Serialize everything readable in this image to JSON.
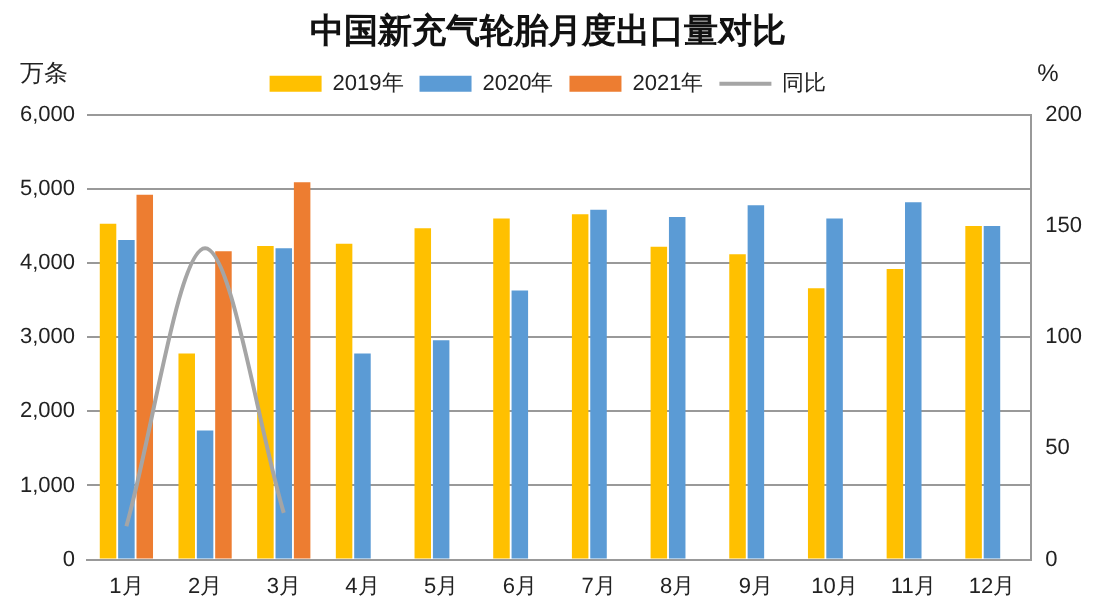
{
  "chart_data": {
    "type": "bar",
    "title": "中国新充气轮胎月度出口量对比",
    "ylabel": "万条",
    "y2label": "%",
    "categories": [
      "1月",
      "2月",
      "3月",
      "4月",
      "5月",
      "6月",
      "7月",
      "8月",
      "9月",
      "10月",
      "11月",
      "12月"
    ],
    "series": [
      {
        "name": "2019年",
        "color": "#ffc000",
        "values": [
          4530,
          2780,
          4230,
          4260,
          4470,
          4600,
          4660,
          4220,
          4120,
          3660,
          3920,
          4500
        ]
      },
      {
        "name": "2020年",
        "color": "#5b9bd5",
        "values": [
          4310,
          1740,
          4200,
          2780,
          2960,
          3630,
          4720,
          4620,
          4780,
          4600,
          4820,
          4500
        ]
      },
      {
        "name": "2021年",
        "color": "#ed7d31",
        "values": [
          4920,
          4160,
          5090,
          null,
          null,
          null,
          null,
          null,
          null,
          null,
          null,
          null
        ]
      },
      {
        "name": "同比",
        "type": "line",
        "axis": "y2",
        "color": "#a5a5a5",
        "values": [
          15,
          140,
          21,
          null,
          null,
          null,
          null,
          null,
          null,
          null,
          null,
          null
        ]
      }
    ],
    "ylim": [
      0,
      6000
    ],
    "yticks": [
      0,
      {
        "value": 1000,
        "label": "1,000"
      },
      {
        "value": 2000,
        "label": "2,000"
      },
      {
        "value": 3000,
        "label": "3,000"
      },
      {
        "value": 4000,
        "label": "4,000"
      },
      {
        "value": 5000,
        "label": "5,000"
      },
      {
        "value": 6000,
        "label": "6,000"
      }
    ],
    "y2lim": [
      0,
      200
    ],
    "y2ticks": [
      0,
      50,
      100,
      150,
      200
    ],
    "grid": "y",
    "legend": "top",
    "marker": "none"
  }
}
